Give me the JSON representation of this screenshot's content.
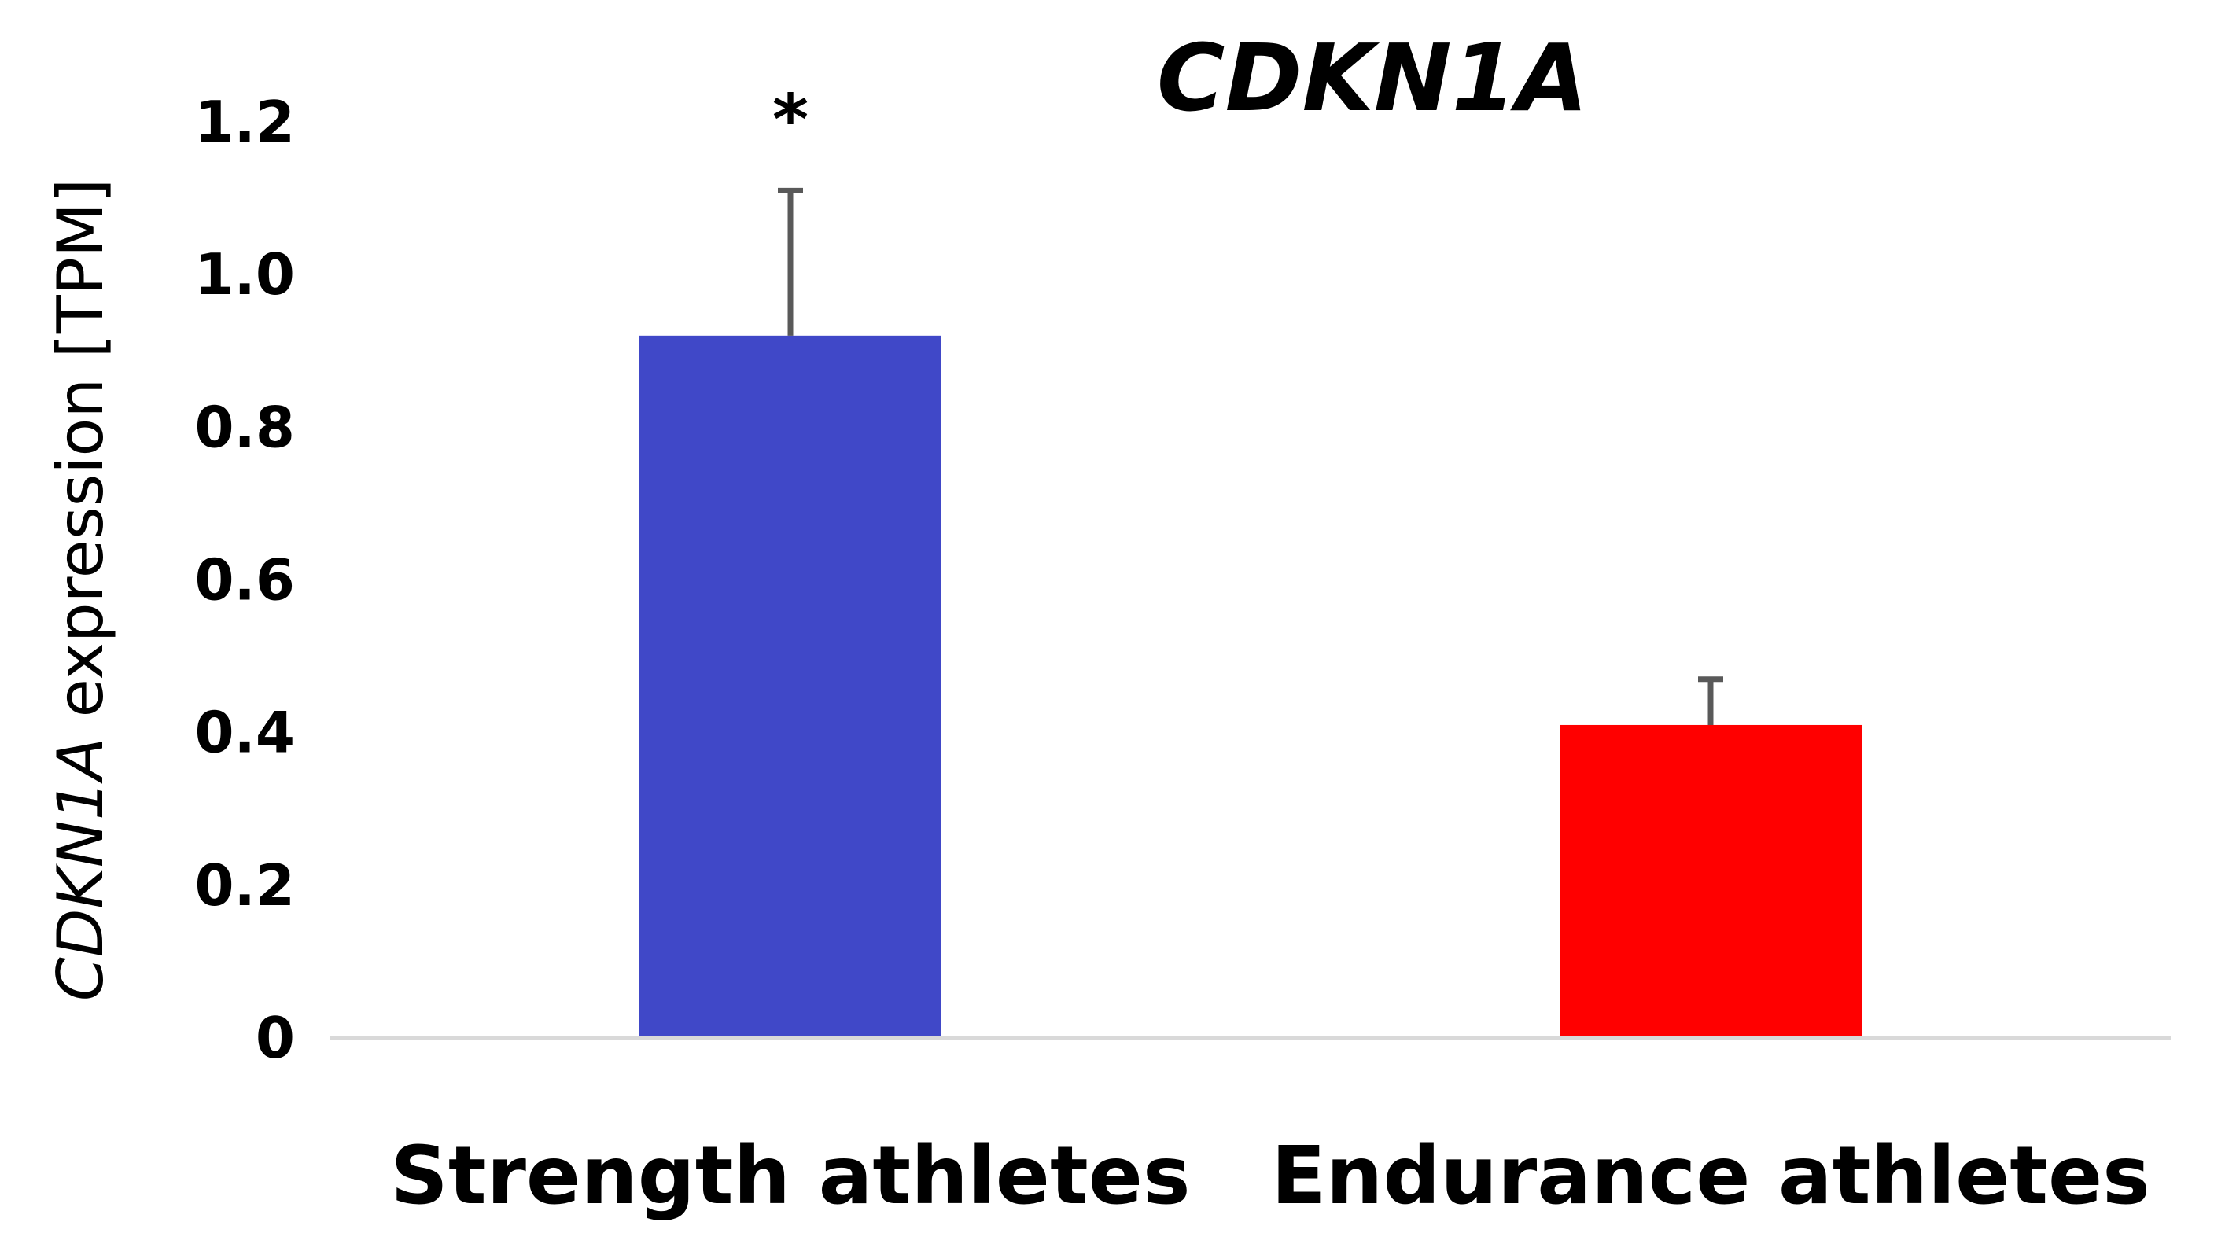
{
  "chart_data": {
    "type": "bar",
    "title": "CDKN1A",
    "ylabel": {
      "italic": "CDKN1A",
      "rest": " expression [TPM]"
    },
    "xlabel": "",
    "ylim": [
      0,
      1.2
    ],
    "yticks": [
      "0",
      "0.2",
      "0.4",
      "0.6",
      "0.8",
      "1.0",
      "1.2"
    ],
    "grid": false,
    "legend": "none",
    "categories": [
      "Strength athletes",
      "Endurance athletes"
    ],
    "series": [
      {
        "values": [
          0.92,
          0.41
        ],
        "errors": [
          0.19,
          0.06
        ],
        "colors": [
          "#4048c8",
          "#ff0000"
        ],
        "annotations": [
          "*",
          ""
        ]
      }
    ],
    "axis_color": "#d9d9d9",
    "error_bar_color": "#595959"
  }
}
